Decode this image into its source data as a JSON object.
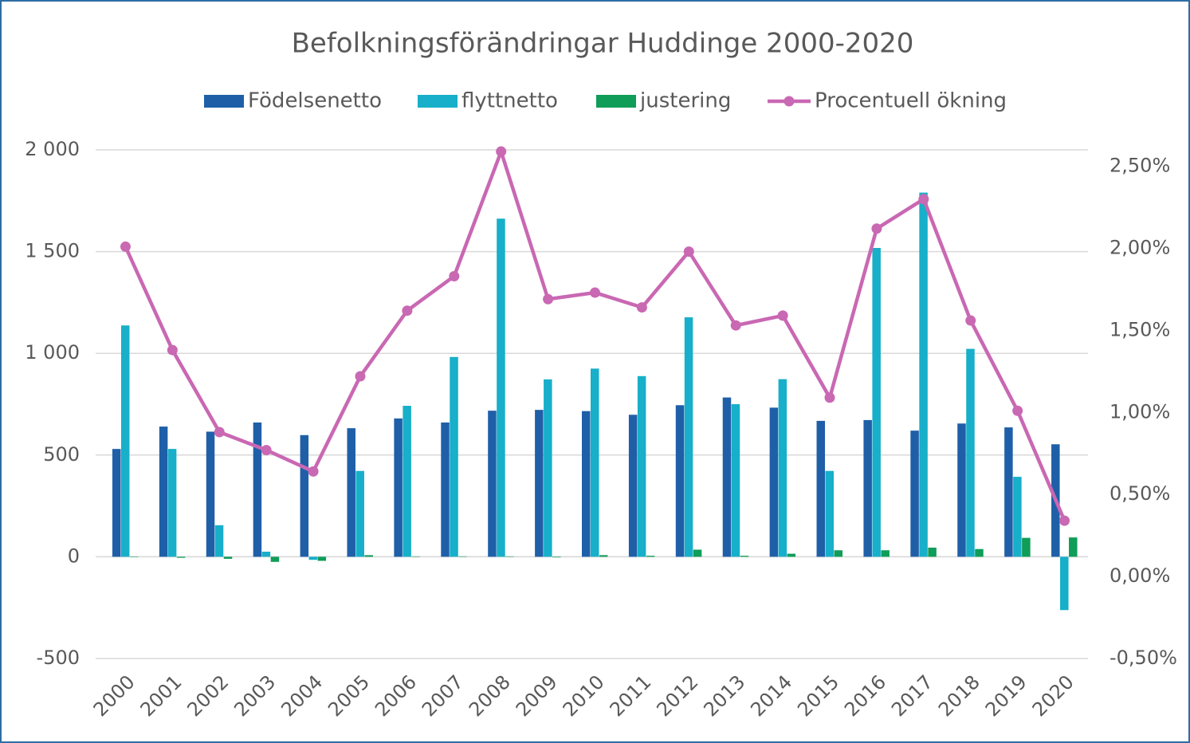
{
  "chart_data": {
    "type": "bar",
    "title": "Befolkningsförändringar Huddinge 2000-2020",
    "categories": [
      "2000",
      "2001",
      "2002",
      "2003",
      "2004",
      "2005",
      "2006",
      "2007",
      "2008",
      "2009",
      "2010",
      "2011",
      "2012",
      "2013",
      "2014",
      "2015",
      "2016",
      "2017",
      "2018",
      "2019",
      "2020"
    ],
    "series": [
      {
        "name": "Födelsenetto",
        "type": "bar",
        "color": "#1f5fa8",
        "values": [
          530,
          640,
          615,
          660,
          598,
          632,
          680,
          660,
          718,
          722,
          716,
          698,
          745,
          783,
          733,
          668,
          672,
          620,
          655,
          636,
          553
        ]
      },
      {
        "name": "flyttnetto",
        "type": "bar",
        "color": "#17afc9",
        "values": [
          1137,
          530,
          155,
          25,
          -15,
          422,
          742,
          982,
          1662,
          872,
          925,
          888,
          1177,
          750,
          873,
          422,
          1518,
          1790,
          1022,
          393,
          -262
        ]
      },
      {
        "name": "justering",
        "type": "bar",
        "color": "#0f9d58",
        "values": [
          -2,
          -5,
          -10,
          -25,
          -20,
          8,
          2,
          2,
          2,
          -3,
          8,
          5,
          35,
          5,
          15,
          32,
          32,
          45,
          38,
          93,
          95
        ]
      },
      {
        "name": "Procentuell ökning",
        "type": "line",
        "axis": "y2",
        "color": "#c968b3",
        "values": [
          2.01,
          1.38,
          0.88,
          0.77,
          0.64,
          1.22,
          1.62,
          1.83,
          2.59,
          1.69,
          1.73,
          1.64,
          1.98,
          1.53,
          1.59,
          1.09,
          2.12,
          2.3,
          1.56,
          1.01,
          0.34
        ]
      }
    ],
    "ylim": [
      -500,
      2000
    ],
    "yticks": [
      -500,
      0,
      500,
      {
        "value": 1000,
        "label": "1 000"
      },
      {
        "value": 1500,
        "label": "1 500"
      },
      {
        "value": 2000,
        "label": "2 000"
      }
    ],
    "y2lim": [
      -0.5,
      2.6
    ],
    "y2ticks": [
      {
        "value": -0.5,
        "label": "-0,50%"
      },
      {
        "value": 0,
        "label": "0,00%"
      },
      {
        "value": 0.5,
        "label": "0,50%"
      },
      {
        "value": 1,
        "label": "1,00%"
      },
      {
        "value": 1.5,
        "label": "1,50%"
      },
      {
        "value": 2,
        "label": "2,00%"
      },
      {
        "value": 2.5,
        "label": "2,50%"
      }
    ],
    "grid": true,
    "legend": "top"
  }
}
